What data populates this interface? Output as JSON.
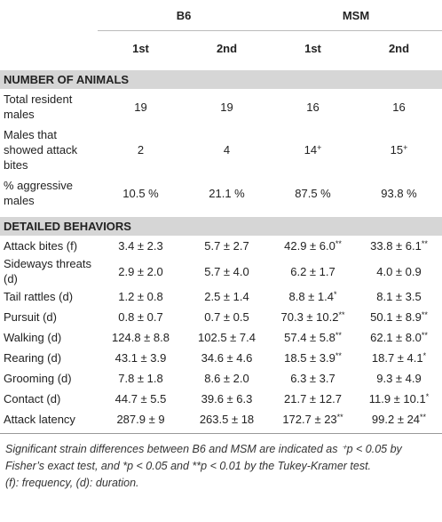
{
  "header": {
    "groups": [
      "B6",
      "MSM"
    ],
    "subheaders": [
      "1st",
      "2nd",
      "1st",
      "2nd"
    ]
  },
  "sections": [
    {
      "title": "NUMBER OF ANIMALS",
      "rows": [
        {
          "label": "Total resident males",
          "cells": [
            "19",
            "19",
            "16",
            "16"
          ]
        },
        {
          "label": "Males that showed attack bites",
          "cells": [
            "2",
            "4",
            {
              "text": "14",
              "sup": "+"
            },
            {
              "text": "15",
              "sup": "+"
            }
          ]
        },
        {
          "label": "% aggressive males",
          "cells": [
            "10.5 %",
            "21.1 %",
            "87.5 %",
            "93.8 %"
          ]
        }
      ]
    },
    {
      "title": "DETAILED BEHAVIORS",
      "rows": [
        {
          "label": "Attack bites (f)",
          "cells": [
            "3.4 ± 2.3",
            "5.7 ± 2.7",
            {
              "text": "42.9 ± 6.0",
              "sup": "**"
            },
            {
              "text": "33.8 ± 6.1",
              "sup": "**"
            }
          ]
        },
        {
          "label": "Sideways threats (d)",
          "cells": [
            "2.9 ± 2.0",
            "5.7 ± 4.0",
            "6.2 ± 1.7",
            "4.0 ± 0.9"
          ]
        },
        {
          "label": "Tail rattles (d)",
          "cells": [
            "1.2 ± 0.8",
            "2.5 ± 1.4",
            {
              "text": "8.8 ± 1.4",
              "sup": "*"
            },
            "8.1 ± 3.5"
          ]
        },
        {
          "label": "Pursuit (d)",
          "cells": [
            "0.8 ± 0.7",
            "0.7 ± 0.5",
            {
              "text": "70.3 ± 10.2",
              "sup": "**"
            },
            {
              "text": "50.1 ± 8.9",
              "sup": "**"
            }
          ]
        },
        {
          "label": "Walking (d)",
          "cells": [
            "124.8 ± 8.8",
            "102.5 ± 7.4",
            {
              "text": "57.4 ± 5.8",
              "sup": "**"
            },
            {
              "text": "62.1 ± 8.0",
              "sup": "**"
            }
          ]
        },
        {
          "label": "Rearing (d)",
          "cells": [
            "43.1 ± 3.9",
            "34.6 ± 4.6",
            {
              "text": "18.5 ± 3.9",
              "sup": "**"
            },
            {
              "text": "18.7 ± 4.1",
              "sup": "*"
            }
          ]
        },
        {
          "label": "Grooming (d)",
          "cells": [
            "7.8 ± 1.8",
            "8.6 ± 2.0",
            "6.3 ± 3.7",
            "9.3 ± 4.9"
          ]
        },
        {
          "label": "Contact (d)",
          "cells": [
            "44.7 ± 5.5",
            "39.6 ± 6.3",
            "21.7 ± 12.7",
            {
              "text": "11.9 ± 10.1",
              "sup": "*"
            }
          ]
        },
        {
          "label": "Attack latency",
          "cells": [
            "287.9 ± 9",
            "263.5 ± 18",
            {
              "text": "172.7 ± 23",
              "sup": "**"
            },
            {
              "text": "99.2 ± 24",
              "sup": "**"
            }
          ]
        }
      ]
    }
  ],
  "footnote": {
    "note": "Significant strain differences between B6 and MSM are indicated as ⁺p < 0.05 by Fisher’s exact test, and *p < 0.05 and **p < 0.01 by the Tukey-Kramer test.",
    "abbreviations": "(f): frequency, (d): duration."
  }
}
